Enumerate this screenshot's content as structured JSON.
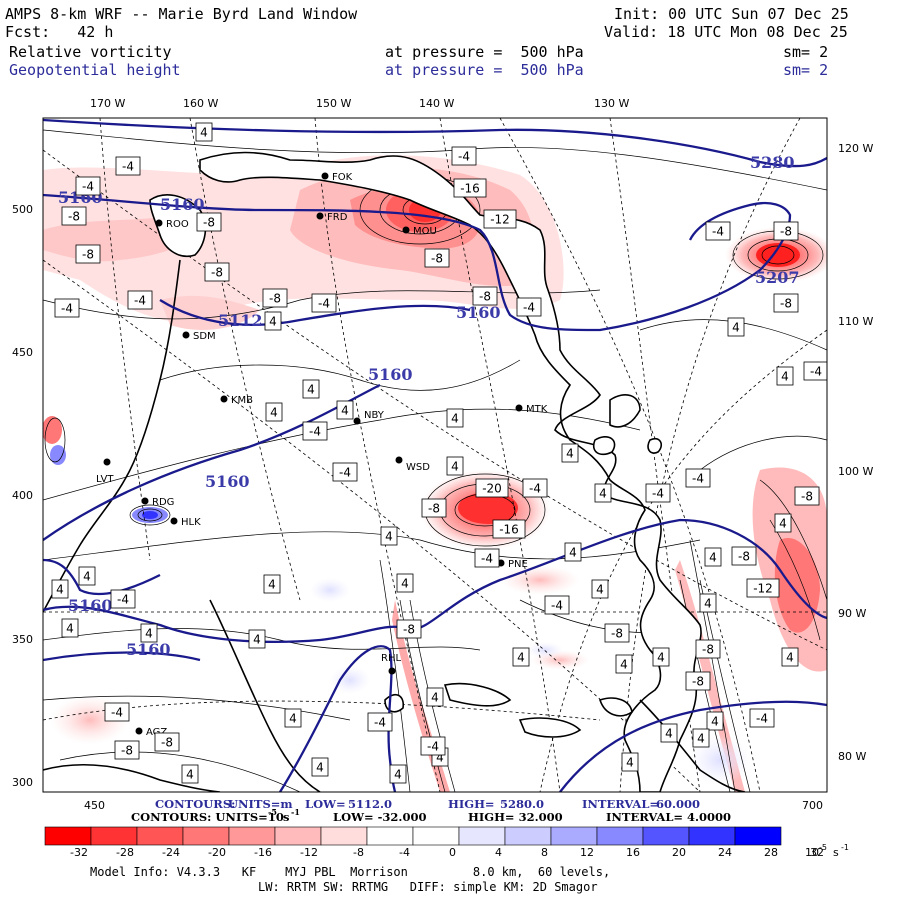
{
  "header": {
    "title": "AMPS 8-km WRF -- Marie Byrd Land Window",
    "init": "Init: 00 UTC Sun 07 Dec 25",
    "fcst": "Fcst:   42 h",
    "valid": "Valid: 18 UTC Mon 08 Dec 25",
    "field1": "Relative vorticity",
    "field1_level": "at pressure =  500 hPa",
    "field1_sm": "sm= 2",
    "field2": "Geopotential height",
    "field2_level": "at pressure =  500 hPa",
    "field2_sm": "sm= 2"
  },
  "longitudes_top": [
    "170 W",
    "160 W",
    "150 W",
    "140 W",
    "130 W"
  ],
  "longitudes_right": [
    "120 W",
    "110 W",
    "100 W",
    "90 W",
    "80 W"
  ],
  "left_ticks": [
    "500",
    "450",
    "400",
    "350",
    "300"
  ],
  "bottom_ticks": [
    "450",
    "700"
  ],
  "stations": [
    "FOK",
    "FRD",
    "MOU",
    "ROO",
    "SDM",
    "KMB",
    "NBY",
    "MTK",
    "WSD",
    "LVT",
    "RDG",
    "HLK",
    "PNE",
    "RHL",
    "AGZ"
  ],
  "height_labels": [
    "5280",
    "5160",
    "5112",
    "5160",
    "5160",
    "5160",
    "5160",
    "5207",
    "5160",
    "5160"
  ],
  "contour_info": {
    "line1_left": "CONTOURS:",
    "line1_units": "UNITS=m",
    "line1_low": "LOW=",
    "line1_low_val": "5112.0",
    "line1_high": "HIGH=",
    "line1_high_val": "5280.0",
    "line1_int": "INTERVAL=",
    "line1_int_val": "60.000",
    "line2": "CONTOURS:  UNITS=10",
    "line2_exp": "-5",
    "line2_unit": "s",
    "line2_unitexp": "-1",
    "line2_low": "LOW= -32.000",
    "line2_high": "HIGH=  32.000",
    "line2_int": "INTERVAL=   4.0000"
  },
  "colorbar": {
    "labels": [
      "-32",
      "-28",
      "-24",
      "-20",
      "-16",
      "-12",
      "-8",
      "-4",
      "0",
      "4",
      "8",
      "12",
      "16",
      "20",
      "24",
      "28",
      "32"
    ],
    "unit": "10",
    "unit_exp": "-5",
    "unit_s": "s",
    "unit_sexp": "-1",
    "colors": [
      "#ff0000",
      "#ff3333",
      "#ff5555",
      "#ff7777",
      "#ff9999",
      "#ffbbbb",
      "#ffdddd",
      "#ffffff",
      "#ffffff",
      "#e6e6ff",
      "#ccccff",
      "#aaaaff",
      "#8888ff",
      "#5555ff",
      "#3333ff",
      "#0000ff"
    ]
  },
  "footer": {
    "line1": "Model Info: V4.3.3   KF    MYJ PBL  Morrison         8.0 km,  60 levels,",
    "line2": "LW: RRTM SW: RRTMG   DIFF: simple KM: 2D Smagor"
  },
  "vort_labels": [
    "4",
    "-4",
    "-4",
    "-4",
    "-16",
    "-8",
    "-12",
    "-8",
    "-8",
    "-4",
    "-8",
    "-8",
    "-4",
    "-8",
    "-4",
    "-4",
    "-4",
    "-8",
    "4",
    "-8",
    "4",
    "4",
    "4",
    "4",
    "4",
    "-4",
    "4",
    "-4",
    "-4",
    "4",
    "4",
    "-20",
    "-4",
    "-8",
    "-16",
    "4",
    "-4",
    "4",
    "4",
    "-4",
    "4",
    "4",
    "4",
    "-4",
    "4",
    "4",
    "4",
    "4",
    "-4",
    "-8",
    "4",
    "4",
    "4",
    "-8",
    "-8",
    "4",
    "4",
    "4",
    "4",
    "-8",
    "4",
    "-4",
    "4",
    "4",
    "-4",
    "4",
    "4",
    "-8",
    "4",
    "4",
    "-4",
    "-8",
    "4",
    "4",
    "4",
    "-12",
    "-8",
    "-8",
    "4",
    "-4",
    "-4",
    "-8"
  ],
  "colors": {
    "height_contour": "#1a1a8c",
    "label_text": "#3a3aa8",
    "coast": "#000000"
  }
}
